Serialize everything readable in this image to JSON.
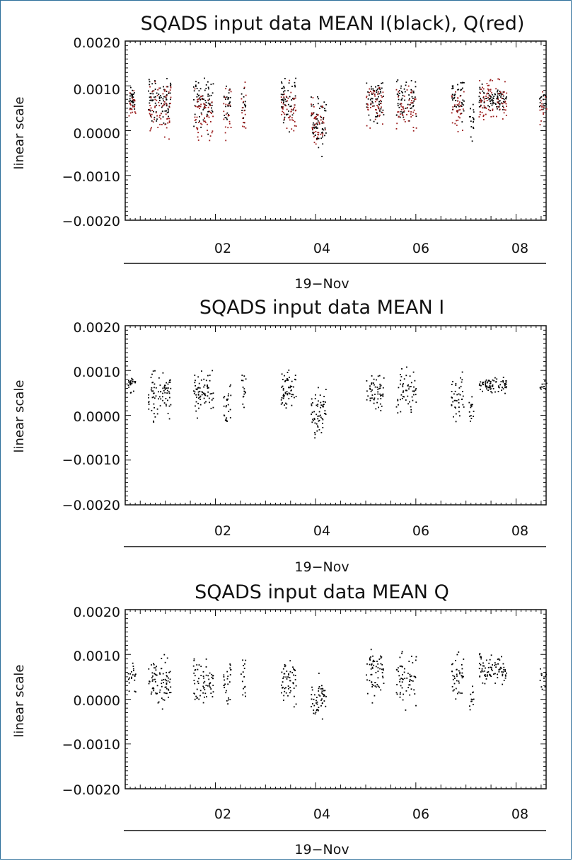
{
  "colors": {
    "series_I": "#000000",
    "series_Q": "#9b1c1c",
    "frame": "#2c6e9a"
  },
  "chart_data": [
    {
      "type": "scatter",
      "title": "SQADS input data MEAN I(black), Q(red)",
      "ylabel": "linear scale",
      "ylim": [
        -0.002,
        0.002
      ],
      "yticks": [
        "0.0020",
        "0.0010",
        "0.0000",
        "−0.0010",
        "−0.0020"
      ],
      "xticks": [
        "02",
        "04",
        "06",
        "08"
      ],
      "xticks_hours": [
        2,
        4,
        6,
        8
      ],
      "xlim_hours": [
        0.2,
        8.6
      ],
      "date_label": "19−Nov",
      "series": [
        {
          "color": "#000000",
          "clusters": [
            {
              "x": [
                0.25,
                0.4
              ],
              "center": 0.0007,
              "spread": 0.0004,
              "min": -0.0003,
              "max": 0.0011,
              "n": 30
            },
            {
              "x": [
                0.65,
                1.1
              ],
              "center": 0.0007,
              "spread": 0.0008,
              "min": -0.001,
              "max": 0.0012,
              "n": 80
            },
            {
              "x": [
                1.55,
                1.95
              ],
              "center": 0.0007,
              "spread": 0.0008,
              "min": -0.0011,
              "max": 0.0012,
              "n": 70
            },
            {
              "x": [
                2.15,
                2.3
              ],
              "center": 0.0006,
              "spread": 0.0008,
              "min": -0.0009,
              "max": 0.0012,
              "n": 25
            },
            {
              "x": [
                2.5,
                2.6
              ],
              "center": 0.0006,
              "spread": 0.0006,
              "min": -0.0004,
              "max": 0.0013,
              "n": 15
            },
            {
              "x": [
                3.3,
                3.6
              ],
              "center": 0.0007,
              "spread": 0.0008,
              "min": -0.001,
              "max": 0.0012,
              "n": 55
            },
            {
              "x": [
                3.9,
                4.2
              ],
              "center": 0.0002,
              "spread": 0.001,
              "min": -0.0012,
              "max": 0.0012,
              "n": 60
            },
            {
              "x": [
                5.0,
                5.35
              ],
              "center": 0.0007,
              "spread": 0.0008,
              "min": -0.0012,
              "max": 0.0011,
              "n": 60
            },
            {
              "x": [
                5.6,
                6.0
              ],
              "center": 0.0007,
              "spread": 0.0008,
              "min": -0.001,
              "max": 0.0012,
              "n": 60
            },
            {
              "x": [
                6.7,
                6.95
              ],
              "center": 0.0007,
              "spread": 0.0008,
              "min": -0.0009,
              "max": 0.0011,
              "n": 45
            },
            {
              "x": [
                7.05,
                7.15
              ],
              "center": 0.0002,
              "spread": 0.0008,
              "min": -0.0012,
              "max": 0.0008,
              "n": 18
            },
            {
              "x": [
                7.25,
                7.8
              ],
              "center": 0.0007,
              "spread": 0.0004,
              "min": 0.0,
              "max": 0.0012,
              "n": 90
            },
            {
              "x": [
                8.45,
                8.6
              ],
              "center": 0.0007,
              "spread": 0.0003,
              "min": 0.0,
              "max": 0.0012,
              "n": 15
            }
          ]
        },
        {
          "color": "#9b1c1c",
          "clusters": [
            {
              "x": [
                0.25,
                0.4
              ],
              "center": 0.0006,
              "spread": 0.0005,
              "min": -0.0001,
              "max": 0.0011,
              "n": 20
            },
            {
              "x": [
                0.65,
                1.1
              ],
              "center": 0.0005,
              "spread": 0.001,
              "min": -0.001,
              "max": 0.0012,
              "n": 70
            },
            {
              "x": [
                1.55,
                1.95
              ],
              "center": 0.0004,
              "spread": 0.001,
              "min": -0.001,
              "max": 0.0012,
              "n": 60
            },
            {
              "x": [
                2.15,
                2.3
              ],
              "center": 0.0004,
              "spread": 0.0008,
              "min": -0.0008,
              "max": 0.0012,
              "n": 20
            },
            {
              "x": [
                2.5,
                2.6
              ],
              "center": 0.0005,
              "spread": 0.0008,
              "min": -0.0003,
              "max": 0.0012,
              "n": 15
            },
            {
              "x": [
                3.3,
                3.6
              ],
              "center": 0.0005,
              "spread": 0.0008,
              "min": -0.0009,
              "max": 0.0012,
              "n": 45
            },
            {
              "x": [
                3.9,
                4.2
              ],
              "center": 0.0002,
              "spread": 0.0008,
              "min": -0.001,
              "max": 0.0011,
              "n": 45
            },
            {
              "x": [
                5.0,
                5.35
              ],
              "center": 0.0006,
              "spread": 0.0008,
              "min": -0.0009,
              "max": 0.0012,
              "n": 45
            },
            {
              "x": [
                5.6,
                6.0
              ],
              "center": 0.0005,
              "spread": 0.0008,
              "min": -0.0009,
              "max": 0.0012,
              "n": 50
            },
            {
              "x": [
                6.7,
                6.95
              ],
              "center": 0.0005,
              "spread": 0.0008,
              "min": -0.0006,
              "max": 0.0011,
              "n": 35
            },
            {
              "x": [
                7.25,
                7.8
              ],
              "center": 0.0007,
              "spread": 0.0008,
              "min": -0.0003,
              "max": 0.0012,
              "n": 80
            },
            {
              "x": [
                8.45,
                8.6
              ],
              "center": 0.0005,
              "spread": 0.0006,
              "min": -0.0001,
              "max": 0.0012,
              "n": 15
            }
          ]
        }
      ]
    },
    {
      "type": "scatter",
      "title": "SQADS input data MEAN I",
      "ylabel": "linear scale",
      "ylim": [
        -0.002,
        0.002
      ],
      "yticks": [
        "0.0020",
        "0.0010",
        "0.0000",
        "−0.0010",
        "−0.0020"
      ],
      "xticks": [
        "02",
        "04",
        "06",
        "08"
      ],
      "xticks_hours": [
        2,
        4,
        6,
        8
      ],
      "xlim_hours": [
        0.2,
        8.6
      ],
      "date_label": "19−Nov",
      "series": [
        {
          "color": "#000000",
          "clusters": [
            {
              "x": [
                0.25,
                0.4
              ],
              "center": 0.0007,
              "spread": 0.0003,
              "min": 0.0,
              "max": 0.0011,
              "n": 25
            },
            {
              "x": [
                0.65,
                1.1
              ],
              "center": 0.0005,
              "spread": 0.0008,
              "min": -0.001,
              "max": 0.0012,
              "n": 80
            },
            {
              "x": [
                1.55,
                1.95
              ],
              "center": 0.0005,
              "spread": 0.0008,
              "min": -0.0011,
              "max": 0.0011,
              "n": 70
            },
            {
              "x": [
                2.15,
                2.3
              ],
              "center": 0.0004,
              "spread": 0.0008,
              "min": -0.0009,
              "max": 0.0012,
              "n": 25
            },
            {
              "x": [
                2.5,
                2.6
              ],
              "center": 0.0006,
              "spread": 0.0006,
              "min": -0.0004,
              "max": 0.0014,
              "n": 15
            },
            {
              "x": [
                3.3,
                3.6
              ],
              "center": 0.0006,
              "spread": 0.0007,
              "min": -0.001,
              "max": 0.0012,
              "n": 55
            },
            {
              "x": [
                3.9,
                4.2
              ],
              "center": 0.0001,
              "spread": 0.0009,
              "min": -0.0012,
              "max": 0.0012,
              "n": 60
            },
            {
              "x": [
                5.0,
                5.35
              ],
              "center": 0.0005,
              "spread": 0.0008,
              "min": -0.0012,
              "max": 0.001,
              "n": 55
            },
            {
              "x": [
                5.6,
                6.0
              ],
              "center": 0.0005,
              "spread": 0.0008,
              "min": -0.001,
              "max": 0.0011,
              "n": 55
            },
            {
              "x": [
                6.7,
                6.95
              ],
              "center": 0.0004,
              "spread": 0.0008,
              "min": -0.0009,
              "max": 0.001,
              "n": 40
            },
            {
              "x": [
                7.05,
                7.15
              ],
              "center": 0.0001,
              "spread": 0.0008,
              "min": -0.0012,
              "max": 0.0008,
              "n": 15
            },
            {
              "x": [
                7.25,
                7.8
              ],
              "center": 0.0007,
              "spread": 0.0003,
              "min": 0.0002,
              "max": 0.0012,
              "n": 80
            },
            {
              "x": [
                8.45,
                8.6
              ],
              "center": 0.0007,
              "spread": 0.0002,
              "min": 0.0004,
              "max": 0.0009,
              "n": 10
            }
          ]
        }
      ]
    },
    {
      "type": "scatter",
      "title": "SQADS input data MEAN Q",
      "ylabel": "linear scale",
      "ylim": [
        -0.002,
        0.002
      ],
      "yticks": [
        "0.0020",
        "0.0010",
        "0.0000",
        "−0.0010",
        "−0.0020"
      ],
      "xticks": [
        "02",
        "04",
        "06",
        "08"
      ],
      "xticks_hours": [
        2,
        4,
        6,
        8
      ],
      "xlim_hours": [
        0.2,
        8.6
      ],
      "date_label": "19−Nov",
      "series": [
        {
          "color": "#000000",
          "clusters": [
            {
              "x": [
                0.25,
                0.4
              ],
              "center": 0.0005,
              "spread": 0.0006,
              "min": -0.0002,
              "max": 0.0011,
              "n": 20
            },
            {
              "x": [
                0.65,
                1.1
              ],
              "center": 0.0004,
              "spread": 0.001,
              "min": -0.001,
              "max": 0.0012,
              "n": 80
            },
            {
              "x": [
                1.55,
                1.95
              ],
              "center": 0.0004,
              "spread": 0.0008,
              "min": -0.001,
              "max": 0.0012,
              "n": 65
            },
            {
              "x": [
                2.15,
                2.3
              ],
              "center": 0.0004,
              "spread": 0.0008,
              "min": -0.0008,
              "max": 0.0012,
              "n": 25
            },
            {
              "x": [
                2.5,
                2.6
              ],
              "center": 0.0005,
              "spread": 0.0008,
              "min": -0.0002,
              "max": 0.0012,
              "n": 15
            },
            {
              "x": [
                3.3,
                3.6
              ],
              "center": 0.0004,
              "spread": 0.0009,
              "min": -0.001,
              "max": 0.0012,
              "n": 55
            },
            {
              "x": [
                3.9,
                4.2
              ],
              "center": 0.0001,
              "spread": 0.0008,
              "min": -0.0011,
              "max": 0.0011,
              "n": 50
            },
            {
              "x": [
                5.0,
                5.35
              ],
              "center": 0.0006,
              "spread": 0.0009,
              "min": -0.001,
              "max": 0.0012,
              "n": 60
            },
            {
              "x": [
                5.6,
                6.0
              ],
              "center": 0.0005,
              "spread": 0.0009,
              "min": -0.001,
              "max": 0.0012,
              "n": 60
            },
            {
              "x": [
                6.7,
                6.95
              ],
              "center": 0.0005,
              "spread": 0.0008,
              "min": -0.0007,
              "max": 0.0011,
              "n": 40
            },
            {
              "x": [
                7.05,
                7.15
              ],
              "center": 0.0,
              "spread": 0.0006,
              "min": -0.0009,
              "max": 0.0008,
              "n": 12
            },
            {
              "x": [
                7.25,
                7.8
              ],
              "center": 0.0007,
              "spread": 0.0006,
              "min": -0.0003,
              "max": 0.0012,
              "n": 80
            },
            {
              "x": [
                8.45,
                8.6
              ],
              "center": 0.0005,
              "spread": 0.0005,
              "min": -0.0001,
              "max": 0.0011,
              "n": 12
            }
          ]
        }
      ]
    }
  ]
}
